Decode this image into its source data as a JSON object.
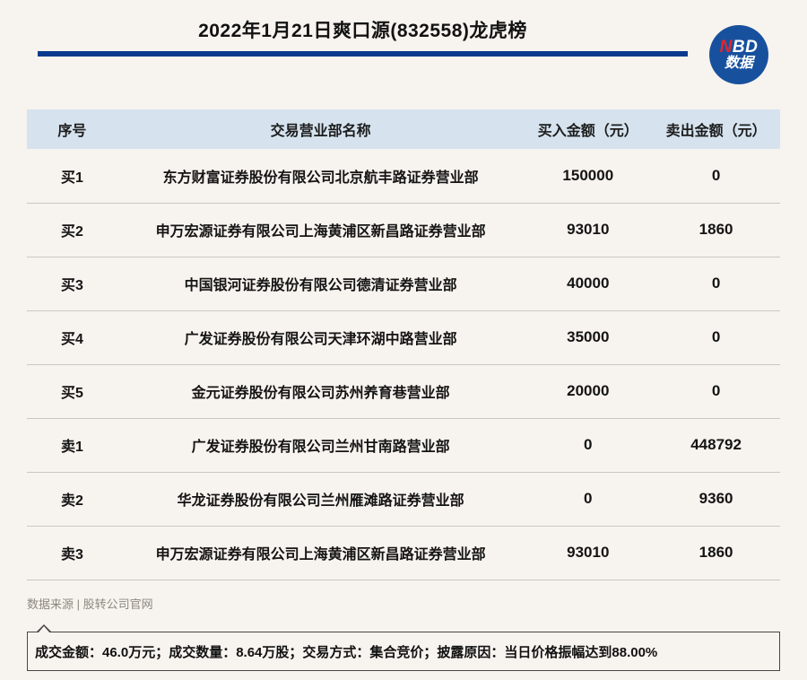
{
  "header": {
    "title": "2022年1月21日爽口源(832558)龙虎榜",
    "logo": {
      "top_red": "N",
      "top_rest": "BD",
      "bottom": "数据"
    }
  },
  "table": {
    "columns": [
      "序号",
      "交易营业部名称",
      "买入金额（元）",
      "卖出金额（元）"
    ],
    "rows": [
      {
        "rank": "买1",
        "name": "东方财富证券股份有限公司北京航丰路证券营业部",
        "buy": "150000",
        "sell": "0"
      },
      {
        "rank": "买2",
        "name": "申万宏源证券有限公司上海黄浦区新昌路证券营业部",
        "buy": "93010",
        "sell": "1860"
      },
      {
        "rank": "买3",
        "name": "中国银河证券股份有限公司德清证券营业部",
        "buy": "40000",
        "sell": "0"
      },
      {
        "rank": "买4",
        "name": "广发证券股份有限公司天津环湖中路营业部",
        "buy": "35000",
        "sell": "0"
      },
      {
        "rank": "买5",
        "name": "金元证券股份有限公司苏州养育巷营业部",
        "buy": "20000",
        "sell": "0"
      },
      {
        "rank": "卖1",
        "name": "广发证券股份有限公司兰州甘南路营业部",
        "buy": "0",
        "sell": "448792"
      },
      {
        "rank": "卖2",
        "name": "华龙证券股份有限公司兰州雁滩路证券营业部",
        "buy": "0",
        "sell": "9360"
      },
      {
        "rank": "卖3",
        "name": "申万宏源证券有限公司上海黄浦区新昌路证券营业部",
        "buy": "93010",
        "sell": "1860"
      }
    ]
  },
  "footer": {
    "source": "数据来源 | 股转公司官网",
    "note": "成交金额：46.0万元；成交数量：8.64万股；交易方式：集合竞价；披露原因：当日价格振幅达到88.00%"
  },
  "colors": {
    "page_bg": "#f7f3ee",
    "accent_navy": "#0b3a8e",
    "table_header_bg": "#d6e3ef",
    "row_divider": "#ccc7c0",
    "logo_blue": "#17519e",
    "logo_red": "#e5262b",
    "source_gray": "#8d8781"
  }
}
